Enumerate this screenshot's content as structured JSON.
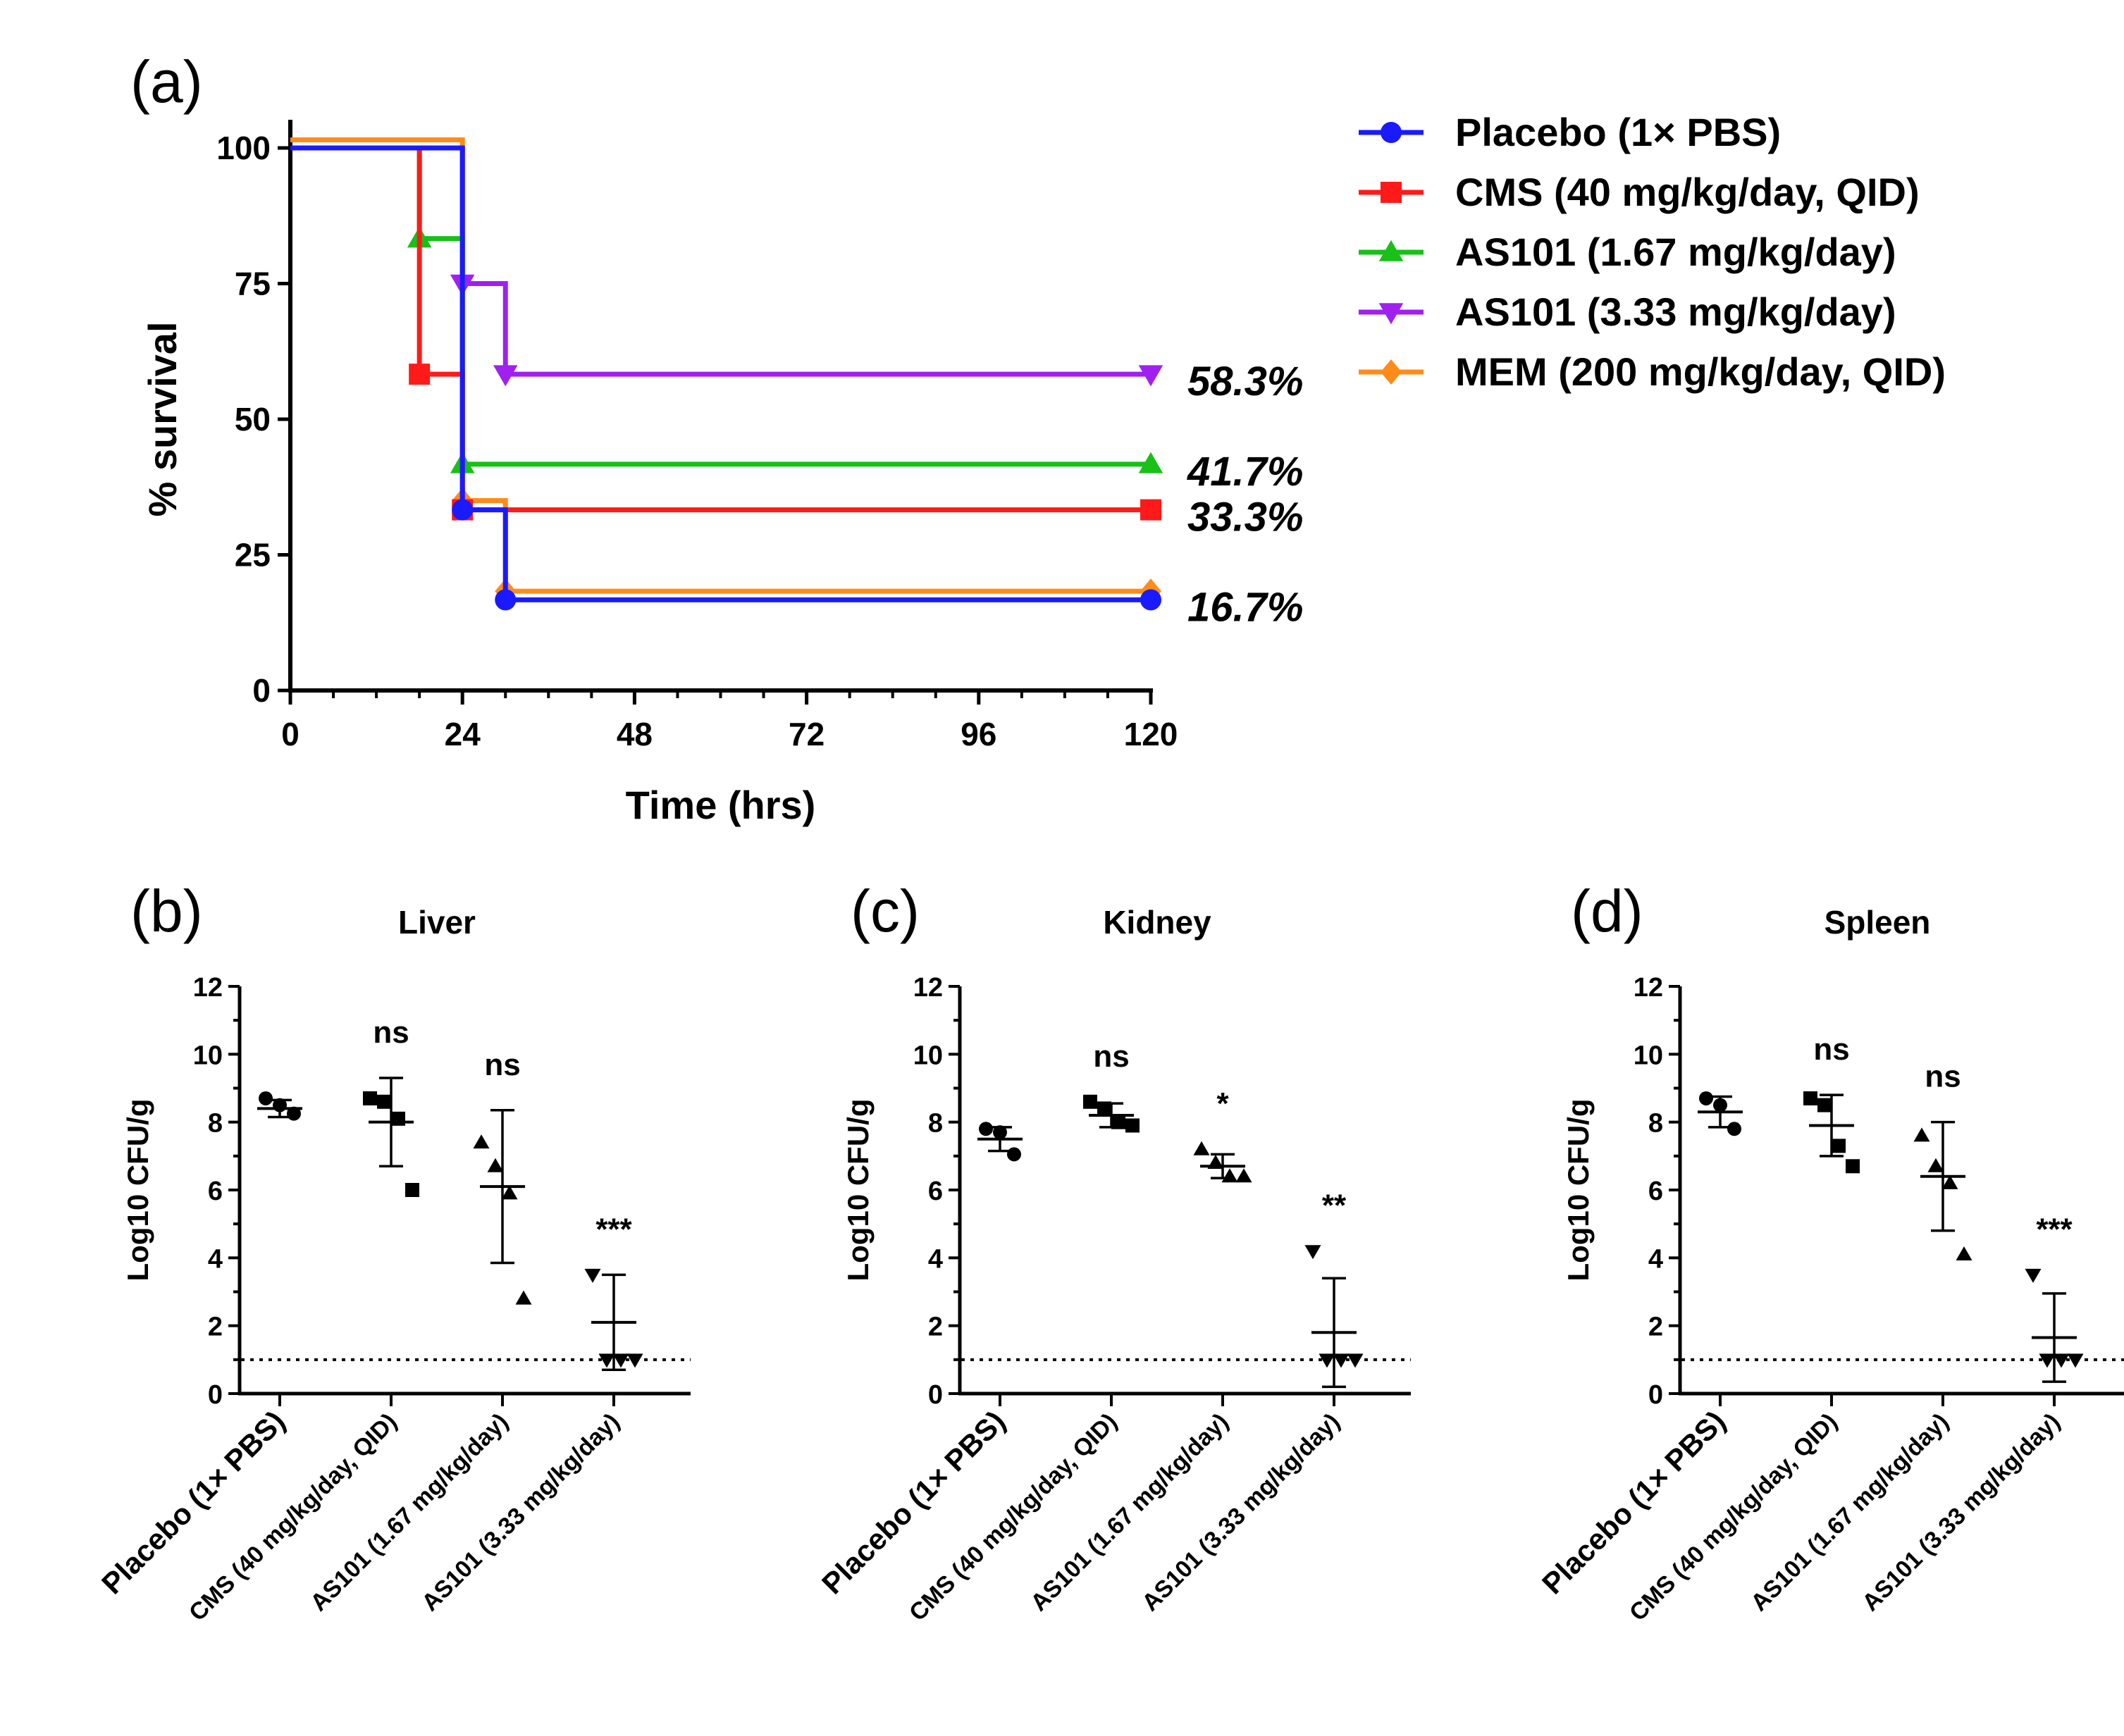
{
  "chart_data": [
    {
      "panel": "(a)",
      "type": "line",
      "subtype": "kaplan-meier-step",
      "title": "",
      "xlabel": "Time (hrs)",
      "ylabel": "% survival",
      "xlim": [
        0,
        120
      ],
      "ylim": [
        0,
        105
      ],
      "xticks": [
        "0",
        "24",
        "48",
        "72",
        "96",
        "120"
      ],
      "yticks": [
        "0",
        "25",
        "50",
        "75",
        "100"
      ],
      "series": [
        {
          "name": "Placebo (1× PBS)",
          "color": "#1a1aff",
          "marker": "circle",
          "steps": [
            [
              0,
              100
            ],
            [
              24,
              100
            ],
            [
              24,
              33.3
            ],
            [
              30,
              33.3
            ],
            [
              30,
              16.7
            ],
            [
              120,
              16.7
            ]
          ],
          "markers": [
            [
              24,
              33.3
            ],
            [
              30,
              16.7
            ],
            [
              120,
              16.7
            ]
          ]
        },
        {
          "name": "CMS (40 mg/kg/day, QID)",
          "color": "#ff1a1a",
          "marker": "square",
          "steps": [
            [
              0,
              100
            ],
            [
              18,
              100
            ],
            [
              18,
              58.3
            ],
            [
              24,
              58.3
            ],
            [
              24,
              33.3
            ],
            [
              120,
              33.3
            ]
          ],
          "markers": [
            [
              18,
              58.3
            ],
            [
              24,
              33.3
            ],
            [
              120,
              33.3
            ]
          ]
        },
        {
          "name": "AS101 (1.67 mg/kg/day)",
          "color": "#18c018",
          "marker": "triangle-up",
          "steps": [
            [
              0,
              100
            ],
            [
              18,
              100
            ],
            [
              18,
              83.3
            ],
            [
              24,
              83.3
            ],
            [
              24,
              41.7
            ],
            [
              120,
              41.7
            ]
          ],
          "markers": [
            [
              18,
              83.3
            ],
            [
              24,
              41.7
            ],
            [
              120,
              41.7
            ]
          ]
        },
        {
          "name": "AS101 (3.33 mg/kg/day)",
          "color": "#a020f0",
          "marker": "triangle-down",
          "steps": [
            [
              0,
              100
            ],
            [
              24,
              100
            ],
            [
              24,
              75
            ],
            [
              30,
              75
            ],
            [
              30,
              58.3
            ],
            [
              120,
              58.3
            ]
          ],
          "markers": [
            [
              24,
              75
            ],
            [
              30,
              58.3
            ],
            [
              120,
              58.3
            ]
          ]
        },
        {
          "name": "MEM (200 mg/kg/day, QID)",
          "color": "#ff8c1a",
          "marker": "diamond",
          "steps": [
            [
              0,
              101.5
            ],
            [
              24,
              101.5
            ],
            [
              24,
              35
            ],
            [
              30,
              35
            ],
            [
              30,
              18.3
            ],
            [
              120,
              18.3
            ]
          ],
          "markers": [
            [
              24,
              35
            ],
            [
              30,
              18.3
            ],
            [
              120,
              18.3
            ]
          ]
        }
      ],
      "annotations": [
        {
          "text": "58.3%",
          "y": 58.3
        },
        {
          "text": "41.7%",
          "y": 41.7
        },
        {
          "text": "33.3%",
          "y": 33.3
        },
        {
          "text": "16.7%",
          "y": 16.7
        }
      ],
      "legend_position": "right"
    },
    {
      "panel": "(b)",
      "type": "scatter",
      "title": "Liver",
      "ylabel": "Log10 CFU/g",
      "ylim": [
        0,
        12
      ],
      "yticks": [
        "0",
        "2",
        "4",
        "6",
        "8",
        "10",
        "12"
      ],
      "detection_limit": 1,
      "categories": [
        "Placebo (1× PBS)",
        "CMS (40 mg/kg/day, QID)",
        "AS101 (1.67 mg/kg/day)",
        "AS101 (3.33 mg/kg/day)"
      ],
      "groups": [
        {
          "marker": "circle",
          "points": [
            8.7,
            8.5,
            8.25
          ],
          "mean": 8.4,
          "sd": 0.25,
          "sig": ""
        },
        {
          "marker": "square",
          "points": [
            8.7,
            8.6,
            8.1,
            6.0
          ],
          "mean": 8.0,
          "sd": 1.3,
          "sig": "ns"
        },
        {
          "marker": "triangle-up",
          "points": [
            7.4,
            6.7,
            5.9,
            2.8
          ],
          "mean": 6.1,
          "sd": 2.25,
          "sig": "ns"
        },
        {
          "marker": "triangle-down",
          "points": [
            3.5,
            1.0,
            1.0,
            1.0
          ],
          "mean": 2.1,
          "sd": 1.4,
          "sig": "***"
        }
      ]
    },
    {
      "panel": "(c)",
      "type": "scatter",
      "title": "Kidney",
      "ylabel": "Log10 CFU/g",
      "ylim": [
        0,
        12
      ],
      "yticks": [
        "0",
        "2",
        "4",
        "6",
        "8",
        "10",
        "12"
      ],
      "detection_limit": 1,
      "categories": [
        "Placebo (1× PBS)",
        "CMS (40 mg/kg/day, QID)",
        "AS101 (1.67 mg/kg/day)",
        "AS101 (3.33 mg/kg/day)"
      ],
      "groups": [
        {
          "marker": "circle",
          "points": [
            7.8,
            7.7,
            7.05
          ],
          "mean": 7.5,
          "sd": 0.35,
          "sig": ""
        },
        {
          "marker": "square",
          "points": [
            8.6,
            8.4,
            8.0,
            7.9
          ],
          "mean": 8.2,
          "sd": 0.35,
          "sig": "ns"
        },
        {
          "marker": "triangle-up",
          "points": [
            7.2,
            6.8,
            6.4,
            6.4
          ],
          "mean": 6.7,
          "sd": 0.35,
          "sig": "*"
        },
        {
          "marker": "triangle-down",
          "points": [
            4.2,
            1.0,
            1.0,
            1.0
          ],
          "mean": 1.8,
          "sd": 1.6,
          "sig": "**"
        }
      ]
    },
    {
      "panel": "(d)",
      "type": "scatter",
      "title": "Spleen",
      "ylabel": "Log10 CFU/g",
      "ylim": [
        0,
        12
      ],
      "yticks": [
        "0",
        "2",
        "4",
        "6",
        "8",
        "10",
        "12"
      ],
      "detection_limit": 1,
      "categories": [
        "Placebo (1× PBS)",
        "CMS (40 mg/kg/day, QID)",
        "AS101 (1.67 mg/kg/day)",
        "AS101 (3.33 mg/kg/day)"
      ],
      "groups": [
        {
          "marker": "circle",
          "points": [
            8.7,
            8.5,
            7.8
          ],
          "mean": 8.3,
          "sd": 0.45,
          "sig": ""
        },
        {
          "marker": "square",
          "points": [
            8.7,
            8.5,
            7.3,
            6.7
          ],
          "mean": 7.9,
          "sd": 0.9,
          "sig": "ns"
        },
        {
          "marker": "triangle-up",
          "points": [
            7.6,
            6.7,
            6.2,
            4.1
          ],
          "mean": 6.4,
          "sd": 1.6,
          "sig": "ns"
        },
        {
          "marker": "triangle-down",
          "points": [
            3.5,
            1.0,
            1.0,
            1.0
          ],
          "mean": 1.65,
          "sd": 1.3,
          "sig": "***"
        }
      ]
    }
  ]
}
